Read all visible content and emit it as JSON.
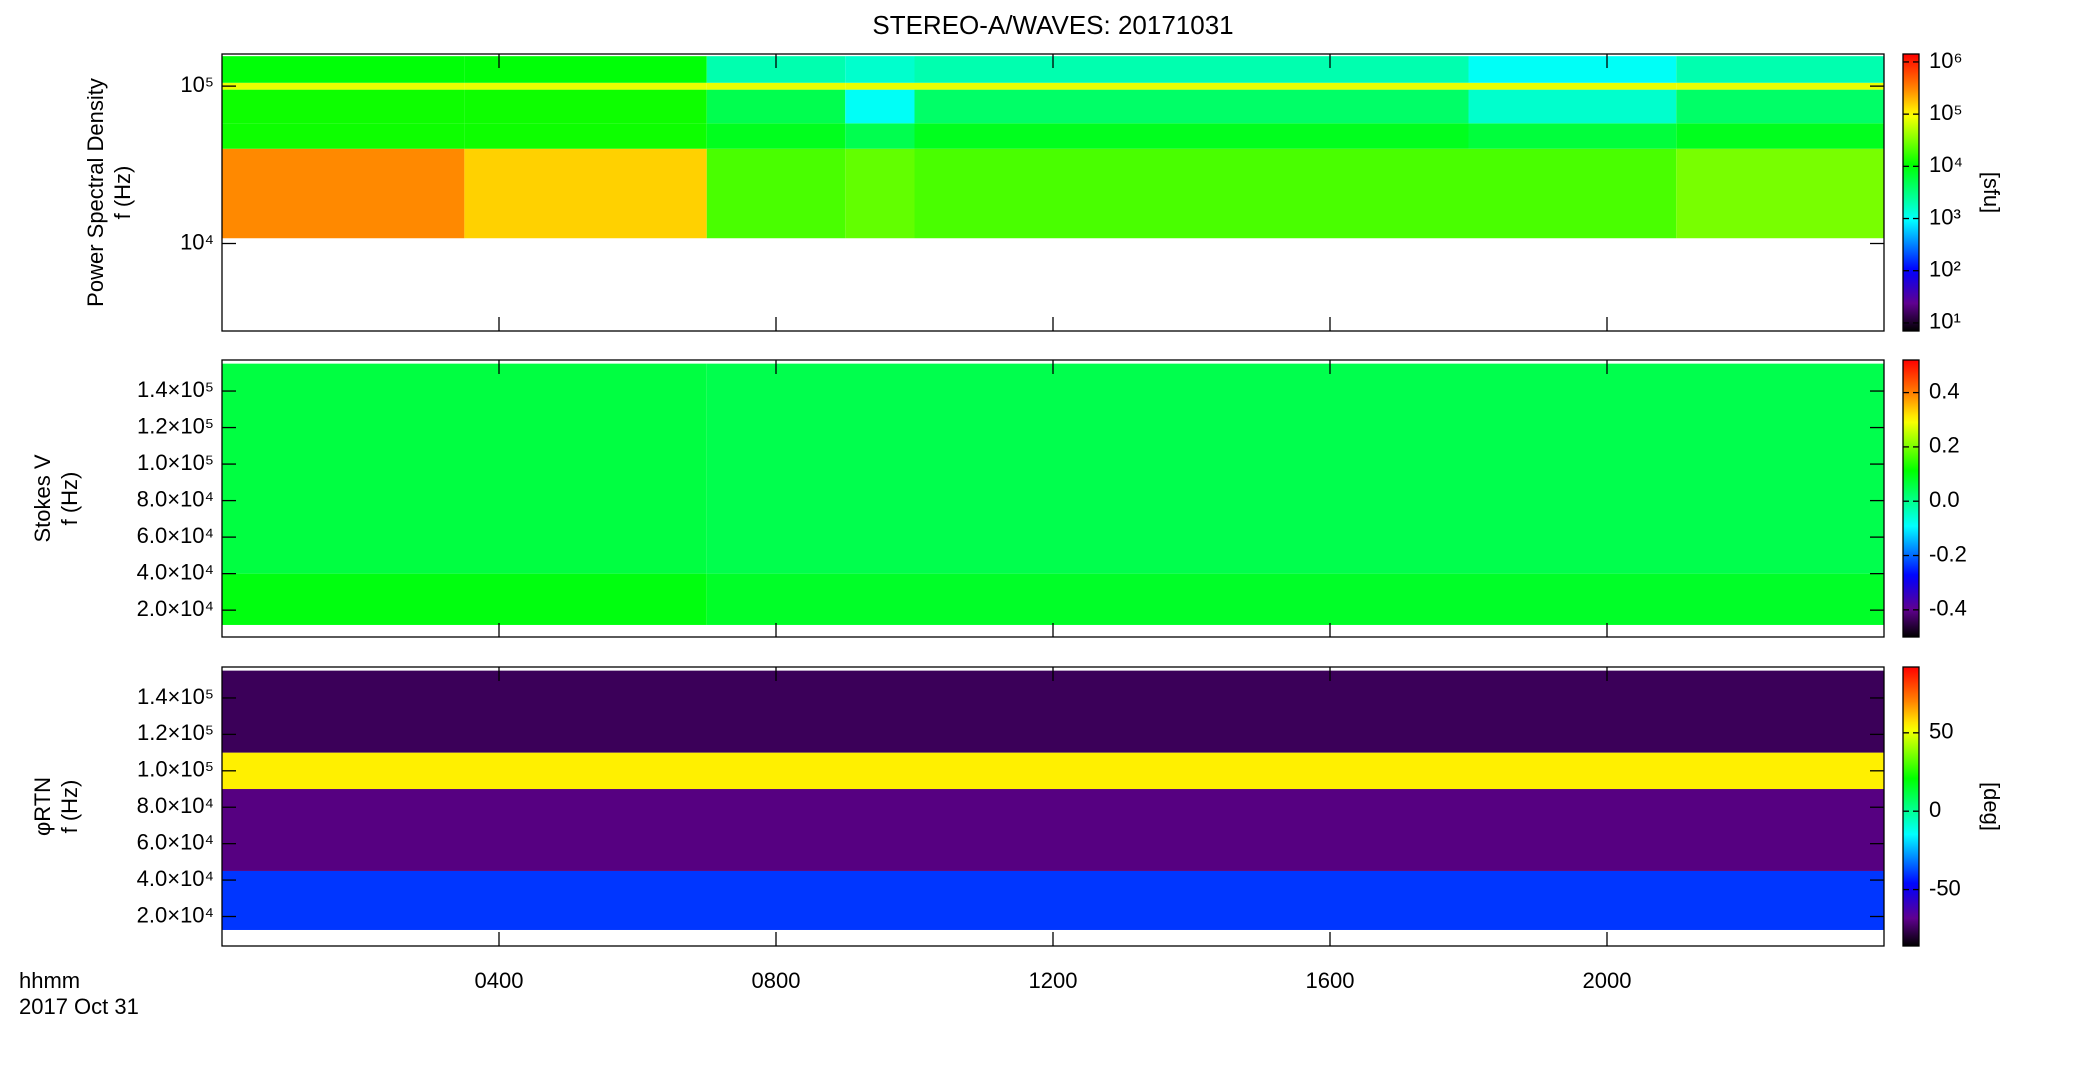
{
  "chart_data": [
    {
      "type": "heatmap",
      "title": "STEREO-A/WAVES: 20171031",
      "ylabel": [
        "Power Spectral Density",
        "f (Hz)"
      ],
      "log_y": true,
      "xlim": [
        0,
        24
      ],
      "xticks": [
        4,
        8,
        12,
        16,
        20
      ],
      "ylim": [
        2780,
        160000
      ],
      "yticks": [
        {
          "value": 10000,
          "label": "10⁴"
        },
        {
          "value": 100000,
          "label": "10⁵"
        }
      ],
      "time_bins": [
        0,
        3.5,
        7,
        9,
        10,
        18,
        21,
        24
      ],
      "freq_bins": [
        10800,
        40000,
        58000,
        95000,
        105000,
        155000
      ],
      "z": [
        [
          300000,
          150000,
          20000,
          25000,
          20000,
          20000,
          30000
        ],
        [
          12000,
          12000,
          8000,
          5000,
          8000,
          6000,
          8000
        ],
        [
          12000,
          12000,
          5000,
          1000,
          4000,
          1500,
          4000
        ],
        [
          80000,
          80000,
          80000,
          80000,
          80000,
          80000,
          80000
        ],
        [
          10000,
          10000,
          2000,
          1500,
          2000,
          1000,
          2000
        ]
      ],
      "colorbar": {
        "log": true,
        "lim": [
          7,
          1420000
        ],
        "ticks": [
          {
            "value": 10,
            "label": "10¹"
          },
          {
            "value": 100,
            "label": "10²"
          },
          {
            "value": 1000,
            "label": "10³"
          },
          {
            "value": 10000,
            "label": "10⁴"
          },
          {
            "value": 100000,
            "label": "10⁵"
          },
          {
            "value": 1000000,
            "label": "10⁶"
          }
        ],
        "label": "[sfu]"
      }
    },
    {
      "type": "heatmap",
      "ylabel": [
        "Stokes V",
        "f (Hz)"
      ],
      "log_y": false,
      "xlim": [
        0,
        24
      ],
      "xticks": [
        4,
        8,
        12,
        16,
        20
      ],
      "ylim": [
        5300,
        157000
      ],
      "yticks": [
        {
          "value": 20000,
          "label": "2.0×10⁴"
        },
        {
          "value": 40000,
          "label": "4.0×10⁴"
        },
        {
          "value": 60000,
          "label": "6.0×10⁴"
        },
        {
          "value": 80000,
          "label": "8.0×10⁴"
        },
        {
          "value": 100000,
          "label": "1.0×10⁵"
        },
        {
          "value": 120000,
          "label": "1.2×10⁵"
        },
        {
          "value": 140000,
          "label": "1.4×10⁵"
        }
      ],
      "time_bins": [
        0,
        7,
        24
      ],
      "freq_bins": [
        11900,
        40000,
        155000
      ],
      "z": [
        [
          0.1,
          0.08
        ],
        [
          0.06,
          0.05
        ]
      ],
      "colorbar": {
        "log": false,
        "lim": [
          -0.5,
          0.52
        ],
        "ticks": [
          -0.4,
          -0.2,
          {
            "value": 0,
            "label": "0.0"
          },
          0.2,
          0.4
        ]
      }
    },
    {
      "type": "heatmap",
      "ylabel": [
        "φRTN",
        "f (Hz)"
      ],
      "log_y": false,
      "xlim": [
        0,
        24
      ],
      "xticks": [
        4,
        8,
        12,
        16,
        20
      ],
      "xtick_labels": [
        "0400",
        "0800",
        "1200",
        "1600",
        "2000"
      ],
      "xlabel": "hhmm",
      "date": "2017 Oct 31",
      "ylim": [
        3800,
        157000
      ],
      "yticks": [
        {
          "value": 20000,
          "label": "2.0×10⁴"
        },
        {
          "value": 40000,
          "label": "4.0×10⁴"
        },
        {
          "value": 60000,
          "label": "6.0×10⁴"
        },
        {
          "value": 80000,
          "label": "8.0×10⁴"
        },
        {
          "value": 100000,
          "label": "1.0×10⁵"
        },
        {
          "value": 120000,
          "label": "1.2×10⁵"
        },
        {
          "value": 140000,
          "label": "1.4×10⁵"
        }
      ],
      "time_bins": [
        0,
        24
      ],
      "freq_bins": [
        12600,
        45000,
        90000,
        110000,
        155000
      ],
      "z": [
        [
          -40
        ],
        [
          -70
        ],
        [
          55
        ],
        [
          -75
        ]
      ],
      "colorbar": {
        "log": false,
        "lim": [
          -86,
          92
        ],
        "ticks": [
          -50,
          0,
          50
        ],
        "label": "[deg]"
      }
    }
  ]
}
